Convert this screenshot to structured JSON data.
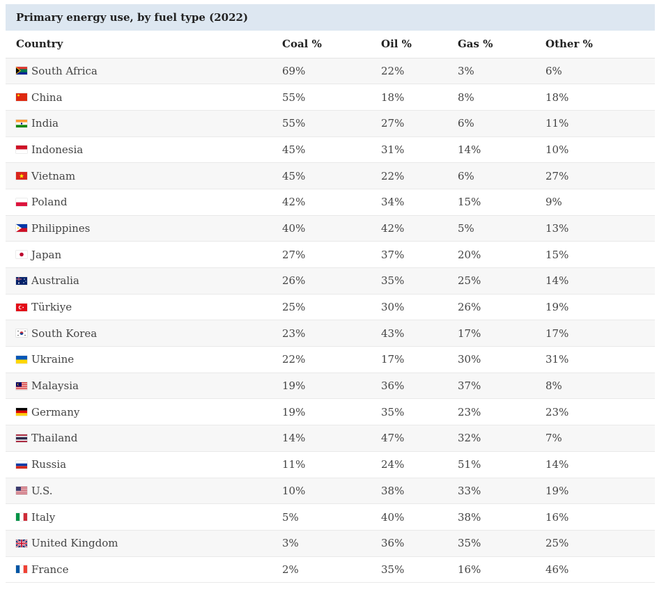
{
  "chart_data": {
    "type": "table",
    "title": "Primary energy use, by fuel type (2022)",
    "columns": [
      "Country",
      "Coal %",
      "Oil %",
      "Gas %",
      "Other %"
    ],
    "rows": [
      {
        "country": "South Africa",
        "flag": "south-africa-flag",
        "coal": "69%",
        "oil": "22%",
        "gas": "3%",
        "other": "6%"
      },
      {
        "country": "China",
        "flag": "china-flag",
        "coal": "55%",
        "oil": "18%",
        "gas": "8%",
        "other": "18%"
      },
      {
        "country": "India",
        "flag": "india-flag",
        "coal": "55%",
        "oil": "27%",
        "gas": "6%",
        "other": "11%"
      },
      {
        "country": "Indonesia",
        "flag": "indonesia-flag",
        "coal": "45%",
        "oil": "31%",
        "gas": "14%",
        "other": "10%"
      },
      {
        "country": "Vietnam",
        "flag": "vietnam-flag",
        "coal": "45%",
        "oil": "22%",
        "gas": "6%",
        "other": "27%"
      },
      {
        "country": "Poland",
        "flag": "poland-flag",
        "coal": "42%",
        "oil": "34%",
        "gas": "15%",
        "other": "9%"
      },
      {
        "country": "Philippines",
        "flag": "philippines-flag",
        "coal": "40%",
        "oil": "42%",
        "gas": "5%",
        "other": "13%"
      },
      {
        "country": "Japan",
        "flag": "japan-flag",
        "coal": "27%",
        "oil": "37%",
        "gas": "20%",
        "other": "15%"
      },
      {
        "country": "Australia",
        "flag": "australia-flag",
        "coal": "26%",
        "oil": "35%",
        "gas": "25%",
        "other": "14%"
      },
      {
        "country": "Türkiye",
        "flag": "turkiye-flag",
        "coal": "25%",
        "oil": "30%",
        "gas": "26%",
        "other": "19%"
      },
      {
        "country": "South Korea",
        "flag": "south-korea-flag",
        "coal": "23%",
        "oil": "43%",
        "gas": "17%",
        "other": "17%"
      },
      {
        "country": "Ukraine",
        "flag": "ukraine-flag",
        "coal": "22%",
        "oil": "17%",
        "gas": "30%",
        "other": "31%"
      },
      {
        "country": "Malaysia",
        "flag": "malaysia-flag",
        "coal": "19%",
        "oil": "36%",
        "gas": "37%",
        "other": "8%"
      },
      {
        "country": "Germany",
        "flag": "germany-flag",
        "coal": "19%",
        "oil": "35%",
        "gas": "23%",
        "other": "23%"
      },
      {
        "country": "Thailand",
        "flag": "thailand-flag",
        "coal": "14%",
        "oil": "47%",
        "gas": "32%",
        "other": "7%"
      },
      {
        "country": "Russia",
        "flag": "russia-flag",
        "coal": "11%",
        "oil": "24%",
        "gas": "51%",
        "other": "14%"
      },
      {
        "country": "U.S.",
        "flag": "us-flag",
        "coal": "10%",
        "oil": "38%",
        "gas": "33%",
        "other": "19%"
      },
      {
        "country": "Italy",
        "flag": "italy-flag",
        "coal": "5%",
        "oil": "40%",
        "gas": "38%",
        "other": "16%"
      },
      {
        "country": "United Kingdom",
        "flag": "uk-flag",
        "coal": "3%",
        "oil": "36%",
        "gas": "35%",
        "other": "25%"
      },
      {
        "country": "France",
        "flag": "france-flag",
        "coal": "2%",
        "oil": "35%",
        "gas": "16%",
        "other": "46%"
      }
    ]
  }
}
